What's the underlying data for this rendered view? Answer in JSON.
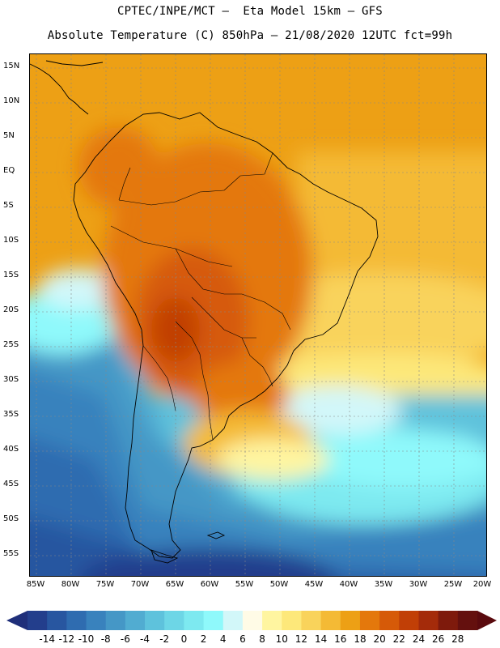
{
  "title_line1": "CPTEC/INPE/MCT –  Eta Model 15km – GFS",
  "title_line2": "Absolute Temperature (C) 850hPa – 21/08/2020 12UTC fct=99h",
  "lat_labels": [
    "15N",
    "10N",
    "5N",
    "EQ",
    "5S",
    "10S",
    "15S",
    "20S",
    "25S",
    "30S",
    "35S",
    "40S",
    "45S",
    "50S",
    "55S"
  ],
  "lon_labels": [
    "85W",
    "80W",
    "75W",
    "70W",
    "65W",
    "60W",
    "55W",
    "50W",
    "45W",
    "40W",
    "35W",
    "30W",
    "25W",
    "20W"
  ],
  "colorbar": {
    "labels": [
      "-14",
      "-12",
      "-10",
      "-8",
      "-6",
      "-4",
      "-2",
      "0",
      "2",
      "4",
      "6",
      "8",
      "10",
      "12",
      "14",
      "16",
      "18",
      "20",
      "22",
      "24",
      "26",
      "28"
    ],
    "colors": [
      "#233e8c",
      "#2856a0",
      "#2f6cb0",
      "#3982bd",
      "#4597c6",
      "#51acd1",
      "#5ec2dc",
      "#6dd6e6",
      "#7de9f0",
      "#8ff9fb",
      "#d2f7f9",
      "#fffbe6",
      "#fff5a0",
      "#fde87a",
      "#f9d35b",
      "#f4ba35",
      "#eda015",
      "#e4780c",
      "#d65a08",
      "#c13f06",
      "#a42b0a",
      "#7e1a0c",
      "#64100e"
    ],
    "low_color": "#1f2f7a",
    "high_color": "#5a0a0e"
  }
}
